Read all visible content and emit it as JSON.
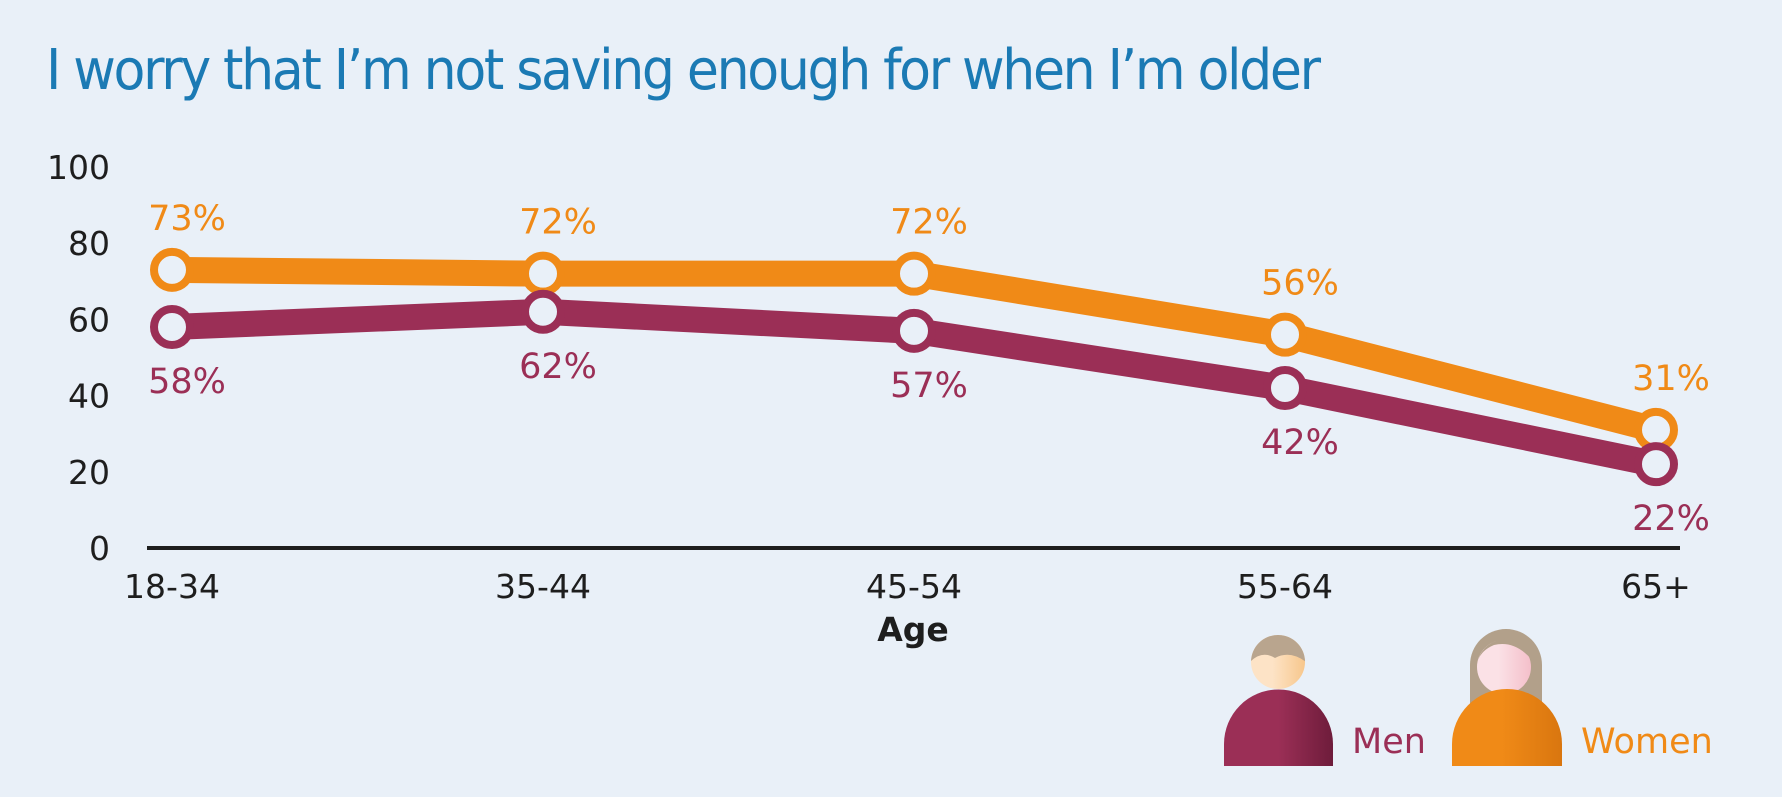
{
  "title": "I worry that I’m not saving enough for when I’m older",
  "colors": {
    "background": "#e9f0f8",
    "title": "#1b7ab4",
    "women": "#f08a17",
    "men": "#9b2f56",
    "axis": "#1e1e1e"
  },
  "legend": [
    {
      "name": "Men",
      "icon": "man-icon",
      "color": "#9b2f56"
    },
    {
      "name": "Women",
      "icon": "woman-icon",
      "color": "#f08a17"
    }
  ],
  "chart_data": {
    "type": "line",
    "title": "I worry that I’m not saving enough for when I’m older",
    "xlabel": "Age",
    "ylabel": "",
    "categories": [
      "18-34",
      "35-44",
      "45-54",
      "55-64",
      "65+"
    ],
    "yticks": [
      "0",
      "20",
      "40",
      "60",
      "80",
      "100"
    ],
    "ylim": [
      0,
      100
    ],
    "grid": false,
    "legend_position": "bottom-right",
    "series": [
      {
        "name": "Women",
        "color": "#f08a17",
        "values": [
          73,
          72,
          72,
          56,
          31
        ],
        "labels": [
          "73%",
          "72%",
          "72%",
          "56%",
          "31%"
        ],
        "label_position": "above"
      },
      {
        "name": "Men",
        "color": "#9b2f56",
        "values": [
          58,
          62,
          57,
          42,
          22
        ],
        "labels": [
          "58%",
          "62%",
          "57%",
          "42%",
          "22%"
        ],
        "label_position": "below"
      }
    ]
  }
}
